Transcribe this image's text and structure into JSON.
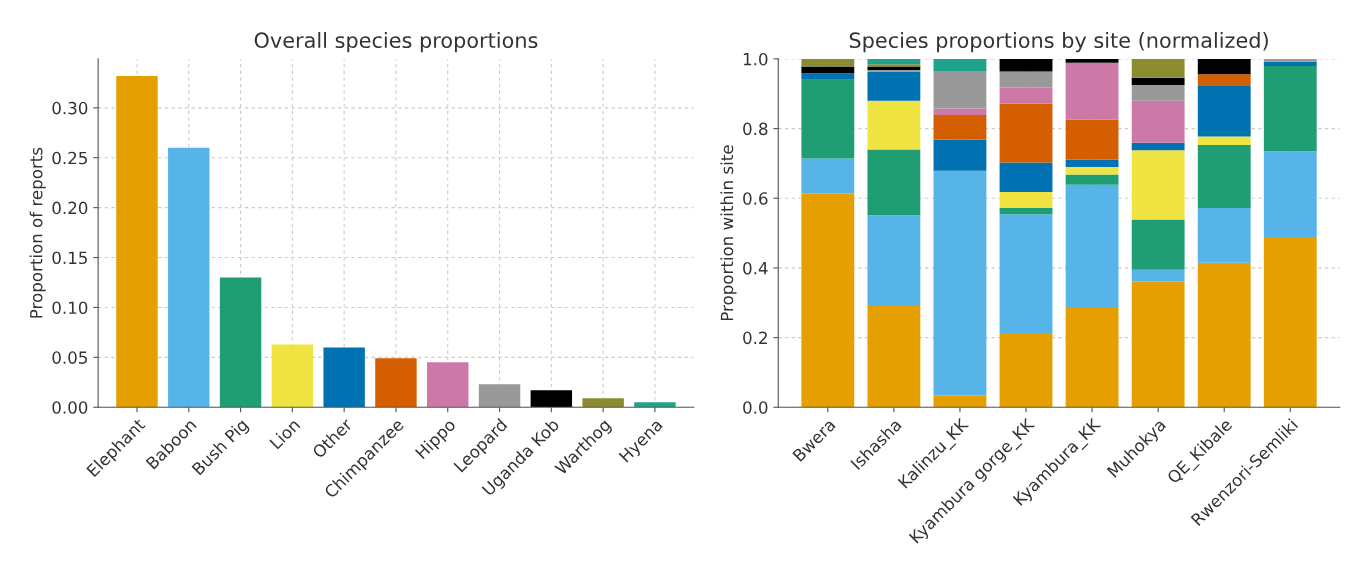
{
  "chart_data": [
    {
      "type": "bar",
      "title": "Overall species proportions",
      "ylabel": "Proportion of reports",
      "categories": [
        "Elephant",
        "Baboon",
        "Bush Pig",
        "Lion",
        "Other",
        "Chimpanzee",
        "Hippo",
        "Leopard",
        "Uganda Kob",
        "Warthog",
        "Hyena"
      ],
      "values": [
        0.332,
        0.26,
        0.13,
        0.063,
        0.06,
        0.049,
        0.045,
        0.023,
        0.017,
        0.009,
        0.005
      ],
      "colors": [
        "#e69f00",
        "#56b4e9",
        "#1f9e73",
        "#f0e442",
        "#0072b2",
        "#d55e00",
        "#cc79a7",
        "#999999",
        "#000000",
        "#8b8b32",
        "#1fa38a"
      ],
      "ylim": [
        0,
        0.349
      ],
      "yticks": [
        {
          "value": 0,
          "label": "0.00"
        },
        {
          "value": 0.05,
          "label": "0.05"
        },
        {
          "value": 0.1,
          "label": "0.10"
        },
        {
          "value": 0.15,
          "label": "0.15"
        },
        {
          "value": 0.2,
          "label": "0.20"
        },
        {
          "value": 0.25,
          "label": "0.25"
        },
        {
          "value": 0.3,
          "label": "0.30"
        }
      ],
      "grid": true
    },
    {
      "type": "bar",
      "stacked": true,
      "title": "Species proportions by site (normalized)",
      "ylabel": "Proportion within site",
      "categories": [
        "Bwera",
        "Ishasha",
        "Kalinzu_KK",
        "Kyambura gorge_KK",
        "Kyambura_KK",
        "Muhokya",
        "QE_Kibale",
        "Rwenzori-Semliki"
      ],
      "series": [
        {
          "color": "#e69f00",
          "values": [
            0.614,
            0.291,
            0.034,
            0.213,
            0.288,
            0.361,
            0.415,
            0.489
          ]
        },
        {
          "color": "#56b4e9",
          "values": [
            0.1,
            0.26,
            0.645,
            0.341,
            0.351,
            0.034,
            0.157,
            0.246
          ]
        },
        {
          "color": "#1f9e73",
          "values": [
            0.226,
            0.189,
            0,
            0.019,
            0.029,
            0.144,
            0.181,
            0.245
          ]
        },
        {
          "color": "#f0e442",
          "values": [
            0,
            0.14,
            0,
            0.045,
            0.022,
            0.199,
            0.024,
            0
          ]
        },
        {
          "color": "#0072b2",
          "values": [
            0.019,
            0.084,
            0.09,
            0.085,
            0.021,
            0.021,
            0.145,
            0.012
          ]
        },
        {
          "color": "#d55e00",
          "values": [
            0,
            0,
            0.07,
            0.169,
            0.115,
            0,
            0.034,
            0
          ]
        },
        {
          "color": "#cc79a7",
          "values": [
            0,
            0,
            0.019,
            0.046,
            0.163,
            0.121,
            0,
            0
          ]
        },
        {
          "color": "#999999",
          "values": [
            0,
            0.004,
            0.107,
            0.046,
            0,
            0.045,
            0,
            0.008
          ]
        },
        {
          "color": "#000000",
          "values": [
            0.019,
            0.01,
            0,
            0.036,
            0.011,
            0.021,
            0.044,
            0
          ]
        },
        {
          "color": "#8b8b32",
          "values": [
            0.022,
            0.007,
            0,
            0,
            0,
            0.054,
            0,
            0
          ]
        },
        {
          "color": "#1fa38a",
          "values": [
            0,
            0.015,
            0.035,
            0,
            0,
            0,
            0,
            0
          ]
        }
      ],
      "ylim": [
        0,
        1
      ],
      "yticks": [
        {
          "value": 0,
          "label": "0.0"
        },
        {
          "value": 0.2,
          "label": "0.2"
        },
        {
          "value": 0.4,
          "label": "0.4"
        },
        {
          "value": 0.6,
          "label": "0.6"
        },
        {
          "value": 0.8,
          "label": "0.8"
        },
        {
          "value": 1.0,
          "label": "1.0"
        }
      ],
      "grid": true
    }
  ]
}
